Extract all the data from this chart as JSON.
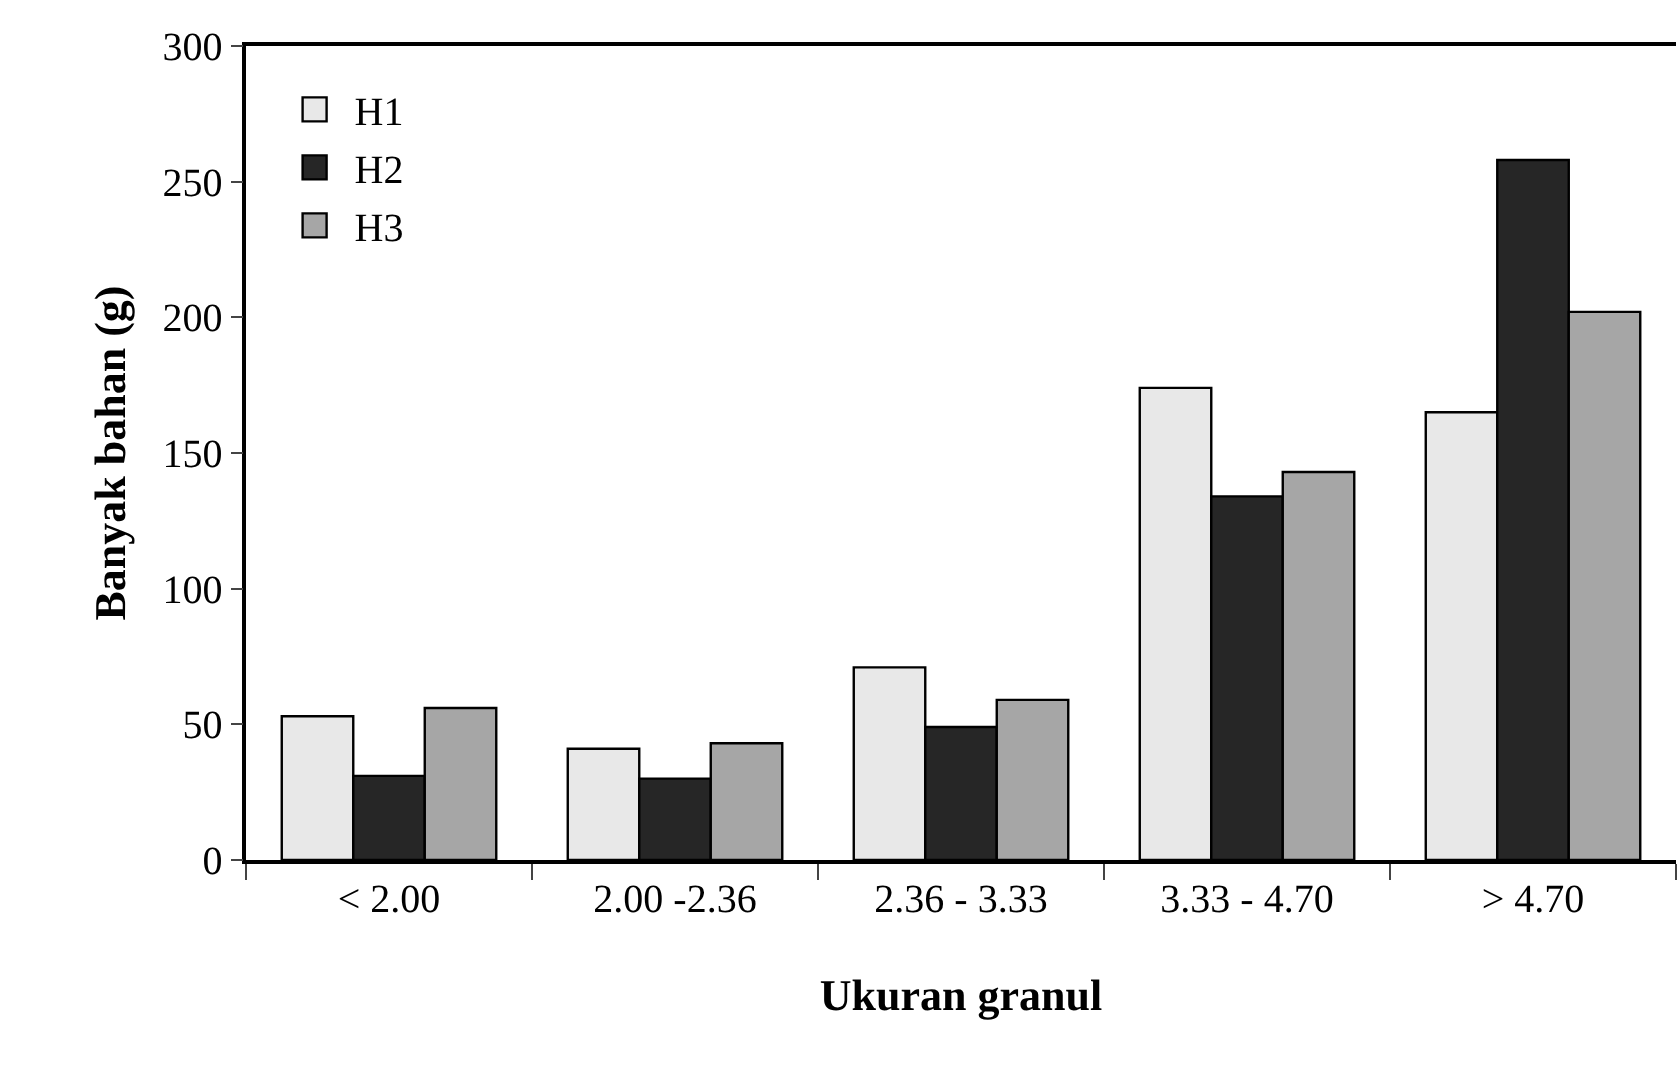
{
  "chart_data": {
    "type": "bar",
    "xlabel": "Ukuran granul",
    "ylabel": "Banyak bahan (g)",
    "categories": [
      "< 2.00",
      "2.00 -2.36",
      "2.36 - 3.33",
      "3.33 - 4.70",
      "> 4.70"
    ],
    "series": [
      {
        "name": "H1",
        "color": "#e8e8e8",
        "values": [
          53,
          41,
          71,
          174,
          165
        ]
      },
      {
        "name": "H2",
        "color": "#262626",
        "values": [
          31,
          30,
          49,
          134,
          258
        ]
      },
      {
        "name": "H3",
        "color": "#a6a6a6",
        "values": [
          56,
          43,
          59,
          143,
          202
        ]
      }
    ],
    "ylim": [
      0,
      300
    ],
    "yticks": [
      0,
      50,
      100,
      150,
      200,
      250,
      300
    ],
    "grid": false,
    "legend": "top left"
  }
}
